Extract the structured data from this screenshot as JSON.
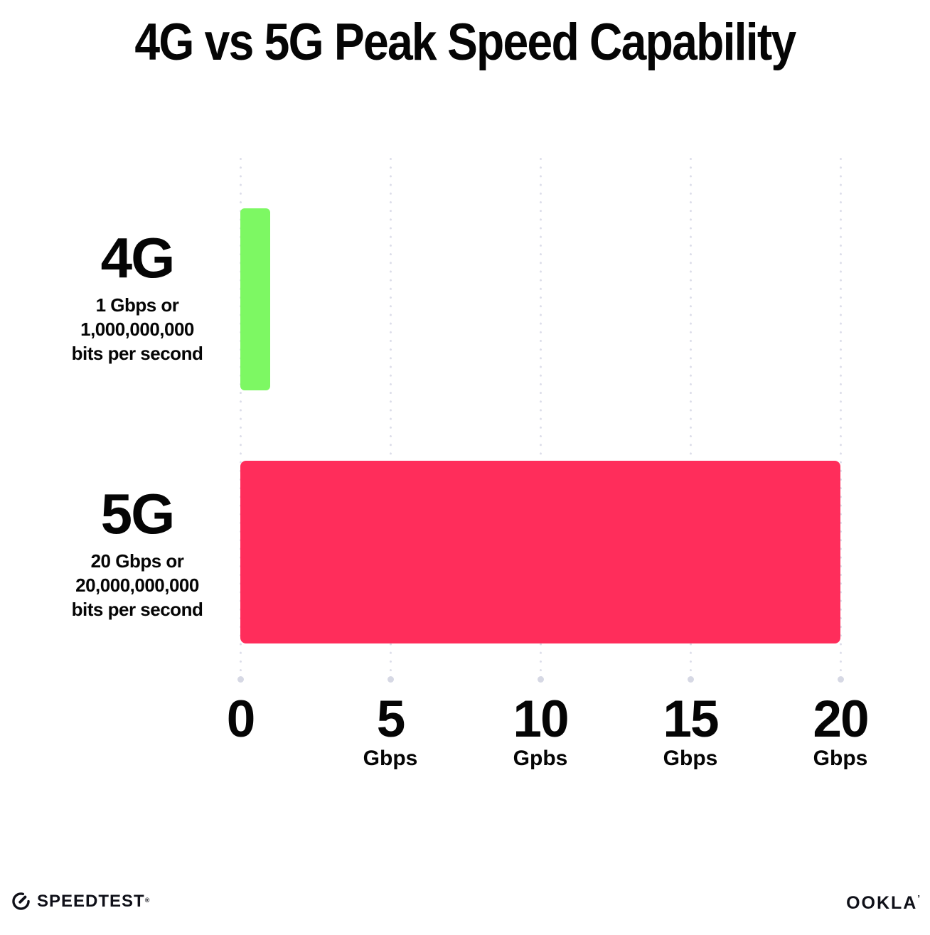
{
  "title": "4G vs 5G Peak Speed Capability",
  "chart_data": {
    "type": "bar",
    "orientation": "horizontal",
    "title": "4G vs 5G Peak Speed Capability",
    "categories": [
      "4G",
      "5G"
    ],
    "values": [
      1,
      20
    ],
    "value_unit": "Gbps",
    "colors": [
      "#7DF863",
      "#FF2D5B"
    ],
    "category_sublabels": [
      [
        "1 Gbps or",
        "1,000,000,000",
        "bits per second"
      ],
      [
        "20 Gbps or",
        "20,000,000,000",
        "bits per second"
      ]
    ],
    "xlim": [
      0,
      20
    ],
    "x_ticks": [
      {
        "value": 0,
        "label": "0",
        "unit": ""
      },
      {
        "value": 5,
        "label": "5",
        "unit": "Gbps"
      },
      {
        "value": 10,
        "label": "10",
        "unit": "Gpbs"
      },
      {
        "value": 15,
        "label": "15",
        "unit": "Gbps"
      },
      {
        "value": 20,
        "label": "20",
        "unit": "Gbps"
      }
    ],
    "grid": "dotted vertical gridlines with end dots",
    "legend": "none"
  },
  "footer": {
    "speedtest_logo_text": "SPEEDTEST",
    "speedtest_trademark": "®",
    "speedtest_icon": "gauge-icon",
    "ookla_logo_text": "OOKLA",
    "ookla_trademark": "’",
    "logo_color": "#0f1018"
  }
}
